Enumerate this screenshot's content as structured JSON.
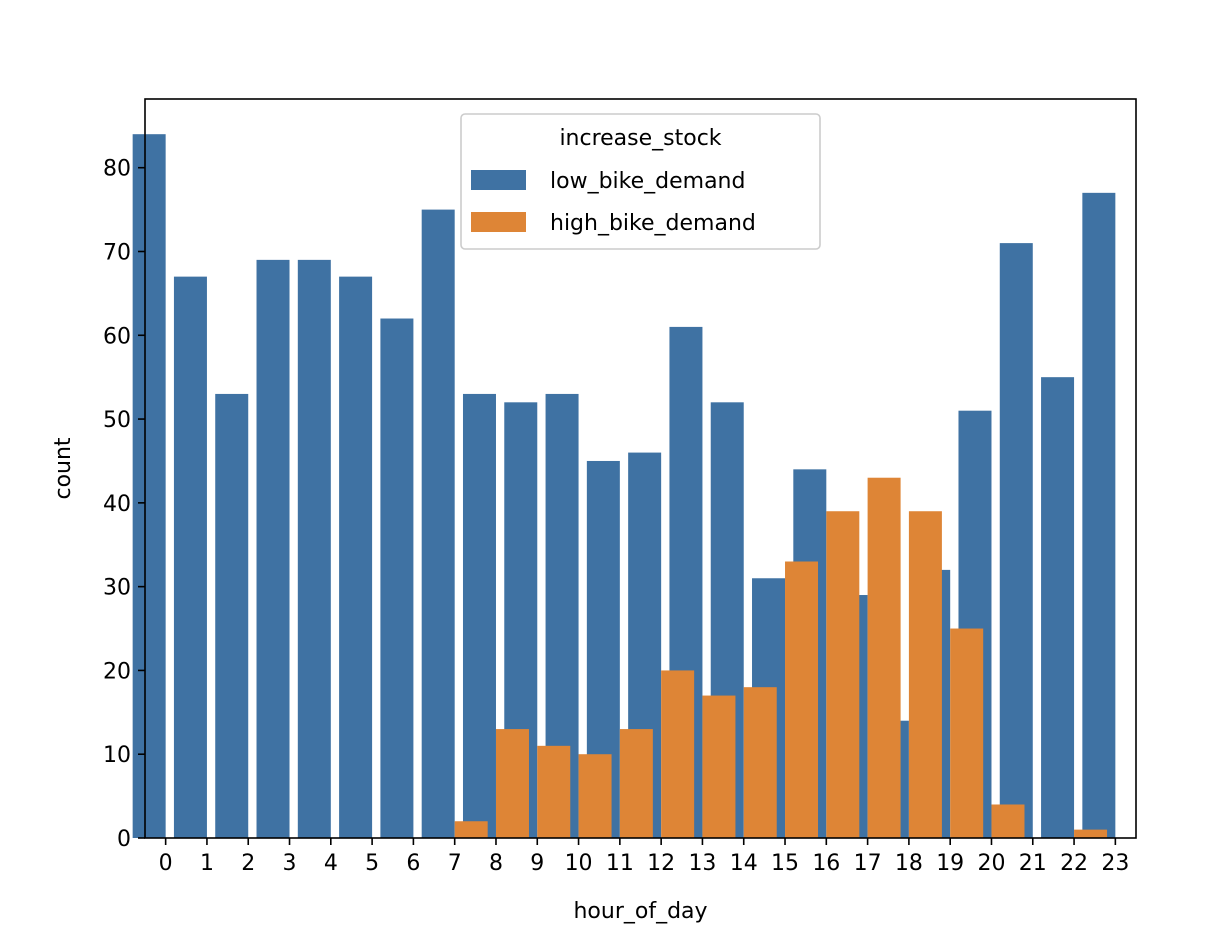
{
  "chart_data": {
    "type": "bar",
    "title": "",
    "xlabel": "hour_of_day",
    "ylabel": "count",
    "categories": [
      "0",
      "1",
      "2",
      "3",
      "4",
      "5",
      "6",
      "7",
      "8",
      "9",
      "10",
      "11",
      "12",
      "13",
      "14",
      "15",
      "16",
      "17",
      "18",
      "19",
      "20",
      "21",
      "22",
      "23"
    ],
    "series": [
      {
        "name": "low_bike_demand",
        "color": "#3f72a3",
        "values": [
          84,
          67,
          53,
          69,
          69,
          67,
          62,
          75,
          53,
          52,
          53,
          45,
          46,
          61,
          52,
          31,
          44,
          29,
          14,
          32,
          51,
          71,
          55,
          77
        ]
      },
      {
        "name": "high_bike_demand",
        "color": "#de8536",
        "values": [
          null,
          null,
          null,
          null,
          null,
          null,
          null,
          2,
          13,
          11,
          10,
          13,
          20,
          17,
          18,
          33,
          39,
          43,
          39,
          25,
          4,
          null,
          1,
          null
        ]
      }
    ],
    "ylim": [
      0,
      88.2
    ],
    "yticks": [
      0,
      10,
      20,
      30,
      40,
      50,
      60,
      70,
      80
    ],
    "grid": false,
    "legend": {
      "title": "increase_stock",
      "placement": "upper-center"
    }
  }
}
